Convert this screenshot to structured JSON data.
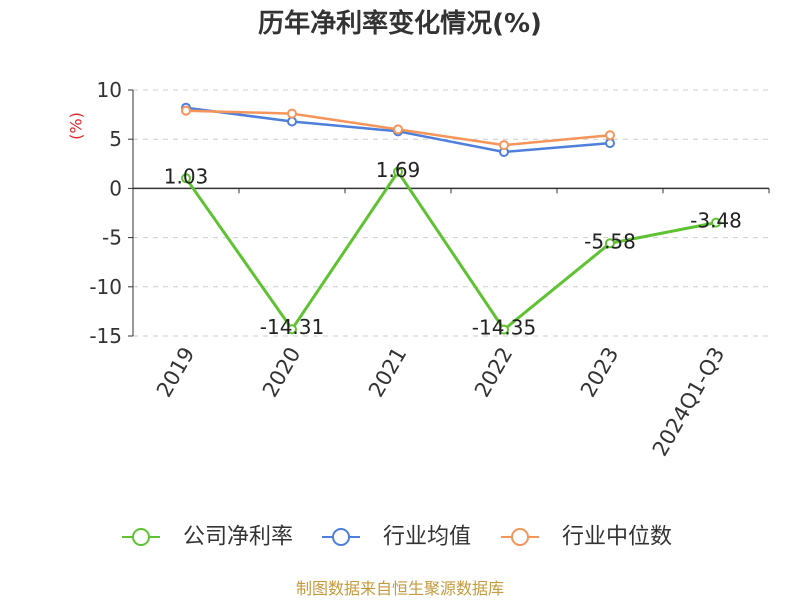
{
  "chart_data": {
    "type": "line",
    "title": "历年净利率变化情况(%)",
    "ylabel": "(%)",
    "categories": [
      "2019",
      "2020",
      "2021",
      "2022",
      "2023",
      "2024Q1-Q3"
    ],
    "ylim": [
      -15,
      10
    ],
    "yticks": [
      10,
      5,
      0,
      -5,
      -10,
      -15
    ],
    "grid": true,
    "legend": "bottom",
    "series": [
      {
        "name": "公司净利率",
        "color": "#5fc232",
        "data_labels": true,
        "values": [
          1.03,
          -14.31,
          1.69,
          -14.35,
          -5.58,
          -3.48
        ]
      },
      {
        "name": "行业均值",
        "color": "#4e7fdb",
        "data_labels": false,
        "values": [
          8.2,
          6.8,
          5.8,
          3.7,
          4.6,
          null
        ]
      },
      {
        "name": "行业中位数",
        "color": "#f6955a",
        "data_labels": false,
        "values": [
          7.9,
          7.6,
          6.0,
          4.4,
          5.4,
          null
        ]
      }
    ]
  },
  "footer": "制图数据来自恒生聚源数据库",
  "footer_color": "#c49a3e",
  "ylabel_color": "#e0262b"
}
